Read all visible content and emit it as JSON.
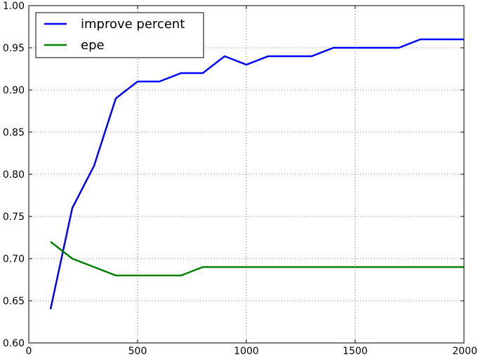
{
  "chart_data": {
    "type": "line",
    "x": [
      100,
      200,
      300,
      400,
      500,
      600,
      700,
      800,
      900,
      1000,
      1100,
      1200,
      1300,
      1400,
      1500,
      1600,
      1700,
      1800,
      1900,
      2000
    ],
    "series": [
      {
        "name": "improve percent",
        "color": "#0000ff",
        "values": [
          0.64,
          0.76,
          0.81,
          0.89,
          0.91,
          0.91,
          0.92,
          0.92,
          0.94,
          0.93,
          0.94,
          0.94,
          0.94,
          0.95,
          0.95,
          0.95,
          0.95,
          0.96,
          0.96,
          0.96
        ]
      },
      {
        "name": "epe",
        "color": "#008000",
        "values": [
          0.72,
          0.7,
          0.69,
          0.68,
          0.68,
          0.68,
          0.68,
          0.69,
          0.69,
          0.69,
          0.69,
          0.69,
          0.69,
          0.69,
          0.69,
          0.69,
          0.69,
          0.69,
          0.69,
          0.69
        ]
      }
    ],
    "xlim": [
      0,
      2000
    ],
    "ylim": [
      0.6,
      1.0
    ],
    "xticks": [
      0,
      500,
      1000,
      1500,
      2000
    ],
    "xtick_labels": [
      "0",
      "500",
      "1000",
      "1500",
      "2000"
    ],
    "yticks": [
      0.6,
      0.65,
      0.7,
      0.75,
      0.8,
      0.85,
      0.9,
      0.95,
      1.0
    ],
    "ytick_labels": [
      "0.60",
      "0.65",
      "0.70",
      "0.75",
      "0.80",
      "0.85",
      "0.90",
      "0.95",
      "1.00"
    ],
    "grid": true,
    "legend_position": "top-left"
  }
}
